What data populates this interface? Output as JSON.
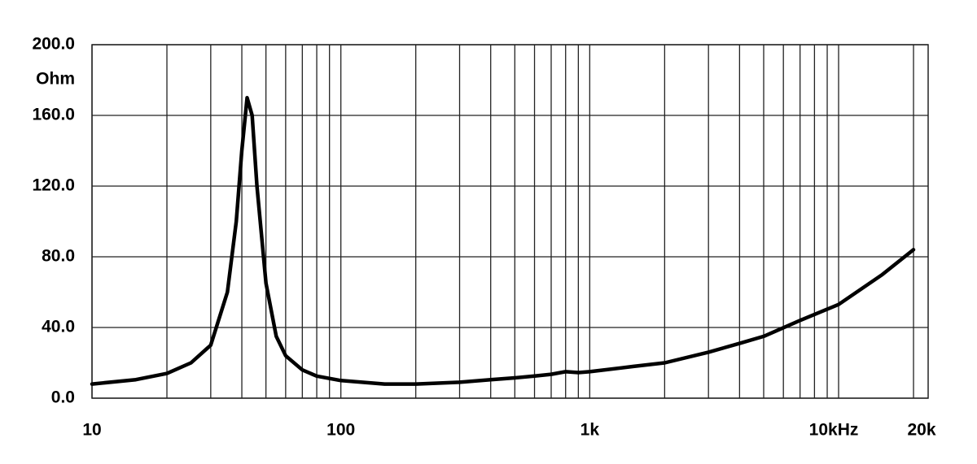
{
  "chart_data": {
    "type": "line",
    "ylabel": "Ohm",
    "xscale": "log",
    "grid": true,
    "x": [
      10,
      15,
      20,
      25,
      30,
      35,
      38,
      40,
      42,
      44,
      46,
      50,
      55,
      60,
      70,
      80,
      100,
      150,
      200,
      300,
      400,
      500,
      600,
      700,
      800,
      900,
      1000,
      1500,
      2000,
      3000,
      4000,
      5000,
      7000,
      10000,
      15000,
      20000
    ],
    "series": [
      {
        "color": "#000000",
        "values": [
          8,
          10.5,
          14,
          20,
          30,
          60,
          100,
          140,
          170,
          160,
          120,
          65,
          35,
          24,
          16,
          12.5,
          10,
          8,
          8,
          9,
          10.5,
          11.5,
          12.5,
          13.5,
          15,
          14.5,
          15,
          18,
          20,
          26,
          31,
          35,
          44,
          53,
          70,
          84
        ]
      }
    ],
    "xlim": [
      10,
      22900
    ],
    "xticks": [
      10,
      100,
      {
        "value": 1000,
        "label": "1k"
      },
      {
        "value": 10000,
        "label": "10kHz"
      },
      {
        "value": 20000,
        "label": "20k"
      }
    ],
    "xminor": [
      20,
      30,
      40,
      50,
      60,
      70,
      80,
      90,
      200,
      300,
      400,
      500,
      600,
      700,
      800,
      900,
      2000,
      3000,
      4000,
      5000,
      6000,
      7000,
      8000,
      9000
    ],
    "ylim": [
      0,
      200
    ],
    "yticks": [
      {
        "value": 0,
        "label": "0.0"
      },
      {
        "value": 40,
        "label": "40.0"
      },
      {
        "value": 80,
        "label": "80.0"
      },
      {
        "value": 120,
        "label": "120.0"
      },
      {
        "value": 160,
        "label": "160.0"
      },
      {
        "value": 200,
        "label": "200.0"
      }
    ]
  }
}
